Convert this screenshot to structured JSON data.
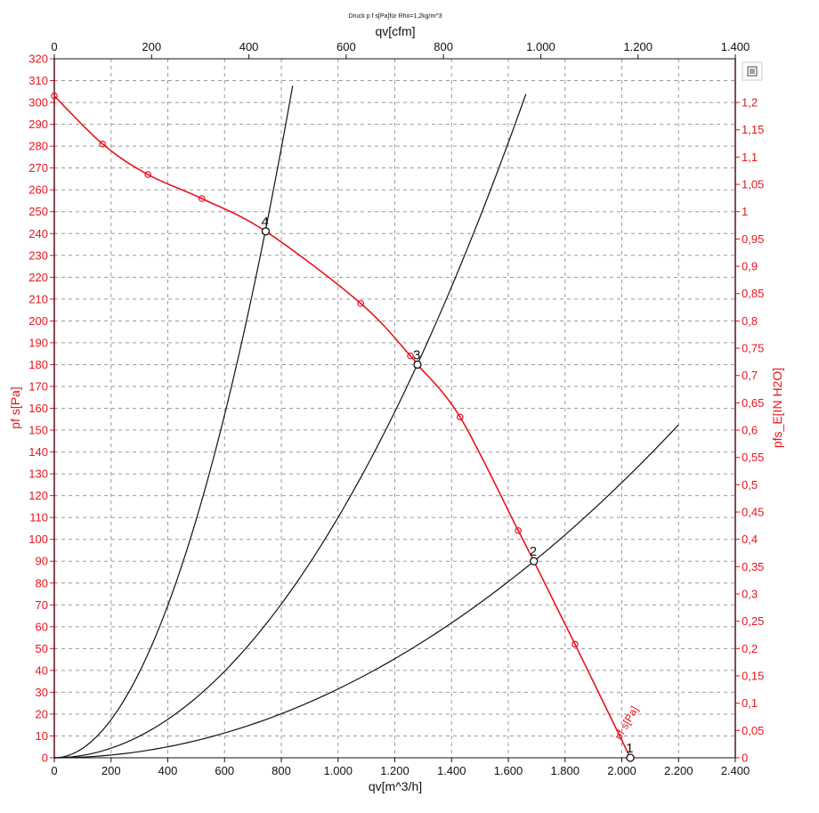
{
  "chart_data": {
    "type": "line",
    "title": "Druck p f s[Pa]für Rho=1,2kg/m^3",
    "xlabel": "qv[m^3/h]",
    "x2label": "qv[cfm]",
    "ylabel": "pf s[Pa]",
    "y2label": "pfs_E[IN H2O]",
    "xlim": [
      0,
      2400
    ],
    "ylim": [
      0,
      320
    ],
    "x2lim": [
      0,
      1400
    ],
    "y2lim": [
      0,
      1.28
    ],
    "grid": true,
    "x_tick_labels": [
      "0",
      "200",
      "400",
      "600",
      "800",
      "1.000",
      "1.200",
      "1.400",
      "1.600",
      "1.800",
      "2.000",
      "2.200",
      "2.400"
    ],
    "y_tick_labels": [
      "0",
      "10",
      "20",
      "30",
      "40",
      "50",
      "60",
      "70",
      "80",
      "90",
      "100",
      "110",
      "120",
      "130",
      "140",
      "150",
      "160",
      "170",
      "180",
      "190",
      "200",
      "210",
      "220",
      "230",
      "240",
      "250",
      "260",
      "270",
      "280",
      "290",
      "300",
      "310",
      "320"
    ],
    "x2_tick_labels": [
      "0",
      "200",
      "400",
      "600",
      "800",
      "1.000",
      "1.200",
      "1.400"
    ],
    "y2_tick_labels": [
      "0",
      "0,05",
      "0,1",
      "0,15",
      "0,2",
      "0,25",
      "0,3",
      "0,35",
      "0,4",
      "0,45",
      "0,5",
      "0,55",
      "0,6",
      "0,65",
      "0,7",
      "0,75",
      "0,8",
      "0,85",
      "0,9",
      "0,95",
      "1",
      "1,05",
      "1,1",
      "1,15",
      "1,2"
    ],
    "colors": {
      "fan_curve": "#e8141e",
      "system_curves": "#111111",
      "grid": "#9a9a9a",
      "right_axis": "#e8141e"
    },
    "series": [
      {
        "name": "pf s[Pa]",
        "role": "fan_curve",
        "points": [
          [
            0,
            303
          ],
          [
            170,
            281
          ],
          [
            330,
            267
          ],
          [
            520,
            256
          ],
          [
            745,
            241
          ],
          [
            1080,
            208
          ],
          [
            1255,
            184
          ],
          [
            1280,
            180
          ],
          [
            1430,
            156
          ],
          [
            1635,
            104
          ],
          [
            1690,
            90
          ],
          [
            1835,
            52
          ],
          [
            2030,
            0
          ]
        ],
        "markers": [
          [
            0,
            303
          ],
          [
            170,
            281
          ],
          [
            330,
            267
          ],
          [
            520,
            256
          ],
          [
            1080,
            208
          ],
          [
            1255,
            184
          ],
          [
            1430,
            156
          ],
          [
            1635,
            104
          ],
          [
            1835,
            52
          ]
        ]
      },
      {
        "name": "",
        "role": "system_curve",
        "k": 0.000436,
        "x_max": 840
      },
      {
        "name": "",
        "role": "system_curve",
        "k": 0.00011,
        "x_max": 1662
      },
      {
        "name": "",
        "role": "system_curve",
        "k": 3.15e-05,
        "x_max": 2200
      }
    ],
    "operating_points": [
      {
        "label": "1",
        "x": 2030,
        "y": 0
      },
      {
        "label": "2",
        "x": 1690,
        "y": 90
      },
      {
        "label": "3",
        "x": 1280,
        "y": 180
      },
      {
        "label": "4",
        "x": 745,
        "y": 241
      }
    ],
    "curve_label": "pf s[Pa]"
  }
}
